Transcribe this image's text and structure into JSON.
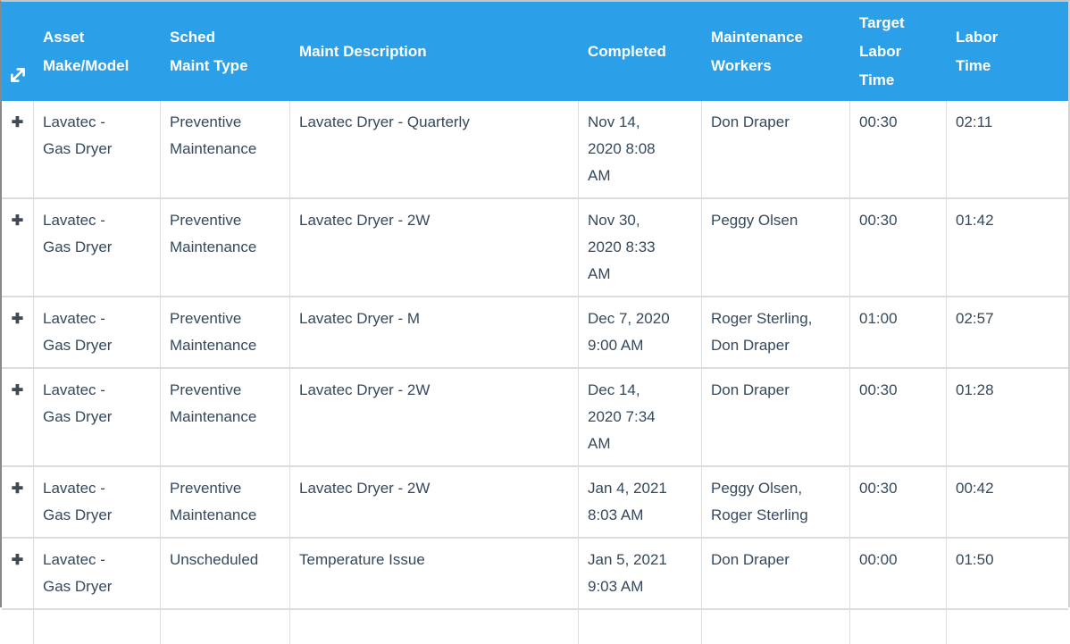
{
  "colors": {
    "header_bg": "#2BA0E9",
    "header_text": "#FFFFFF",
    "body_text": "#34495E",
    "grid_border": "#DDDDDD"
  },
  "icons": {
    "table_corner": "expand-arrows-icon",
    "row_toggle": "plus-icon",
    "plus_glyph": "✚"
  },
  "table": {
    "columns": [
      "",
      "Asset\nMake/Model",
      "Sched\nMaint Type",
      "Maint Description",
      "Completed",
      "Maintenance\nWorkers",
      "Target\nLabor\nTime",
      "Labor\nTime"
    ],
    "rows": [
      {
        "asset": "Lavatec -\nGas Dryer",
        "sched_type": "Preventive\nMaintenance",
        "description": "Lavatec Dryer - Quarterly",
        "completed": "Nov 14,\n2020 8:08\nAM",
        "workers": "Don Draper",
        "target_labor": "00:30",
        "labor": "02:11"
      },
      {
        "asset": "Lavatec -\nGas Dryer",
        "sched_type": "Preventive\nMaintenance",
        "description": "Lavatec Dryer - 2W",
        "completed": "Nov 30,\n2020 8:33\nAM",
        "workers": "Peggy Olsen",
        "target_labor": "00:30",
        "labor": "01:42"
      },
      {
        "asset": "Lavatec -\nGas Dryer",
        "sched_type": "Preventive\nMaintenance",
        "description": "Lavatec Dryer - M",
        "completed": "Dec 7, 2020\n9:00 AM",
        "workers": "Roger Sterling,\nDon Draper",
        "target_labor": "01:00",
        "labor": "02:57"
      },
      {
        "asset": "Lavatec -\nGas Dryer",
        "sched_type": "Preventive\nMaintenance",
        "description": "Lavatec Dryer - 2W",
        "completed": "Dec 14,\n2020 7:34\nAM",
        "workers": "Don Draper",
        "target_labor": "00:30",
        "labor": "01:28"
      },
      {
        "asset": "Lavatec -\nGas Dryer",
        "sched_type": "Preventive\nMaintenance",
        "description": "Lavatec Dryer - 2W",
        "completed": "Jan 4, 2021\n8:03 AM",
        "workers": "Peggy Olsen,\nRoger Sterling",
        "target_labor": "00:30",
        "labor": "00:42"
      },
      {
        "asset": "Lavatec -\nGas Dryer",
        "sched_type": "Unscheduled",
        "description": "Temperature Issue",
        "completed": "Jan 5, 2021\n9:03 AM",
        "workers": "Don Draper",
        "target_labor": "00:00",
        "labor": "01:50"
      }
    ]
  }
}
